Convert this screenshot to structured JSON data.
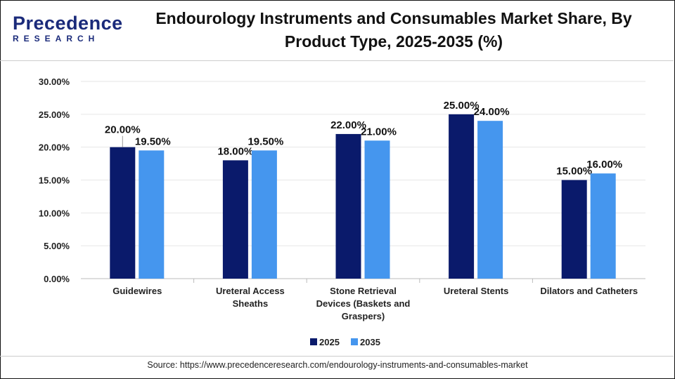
{
  "logo": {
    "line1": "Precedence",
    "line2": "RESEARCH"
  },
  "title": "Endourology Instruments and Consumables Market Share, By Product Type, 2025-2035 (%)",
  "source": "Source: https://www.precedenceresearch.com/endourology-instruments-and-consumables-market",
  "chart_data": {
    "type": "bar",
    "title": "Endourology Instruments and Consumables Market Share, By Product Type, 2025-2035 (%)",
    "categories": [
      "Guidewires",
      "Ureteral Access Sheaths",
      "Stone Retrieval Devices (Baskets and Graspers)",
      "Ureteral Stents",
      "Dilators and Catheters"
    ],
    "category_lines": [
      [
        "Guidewires"
      ],
      [
        "Ureteral Access",
        "Sheaths"
      ],
      [
        "Stone Retrieval",
        "Devices (Baskets and",
        "Graspers)"
      ],
      [
        "Ureteral Stents"
      ],
      [
        "Dilators and Catheters"
      ]
    ],
    "series": [
      {
        "name": "2025",
        "color": "#0a1a6b",
        "values": [
          20,
          18,
          22,
          25,
          15
        ]
      },
      {
        "name": "2035",
        "color": "#4596ee",
        "values": [
          19.5,
          19.5,
          21,
          24,
          16
        ]
      }
    ],
    "ylim": [
      0,
      30
    ],
    "yticks": [
      0,
      5,
      10,
      15,
      20,
      25,
      30
    ],
    "ytick_labels": [
      "0.00%",
      "5.00%",
      "10.00%",
      "15.00%",
      "20.00%",
      "25.00%",
      "30.00%"
    ],
    "grid": true,
    "legend": "bottom"
  }
}
